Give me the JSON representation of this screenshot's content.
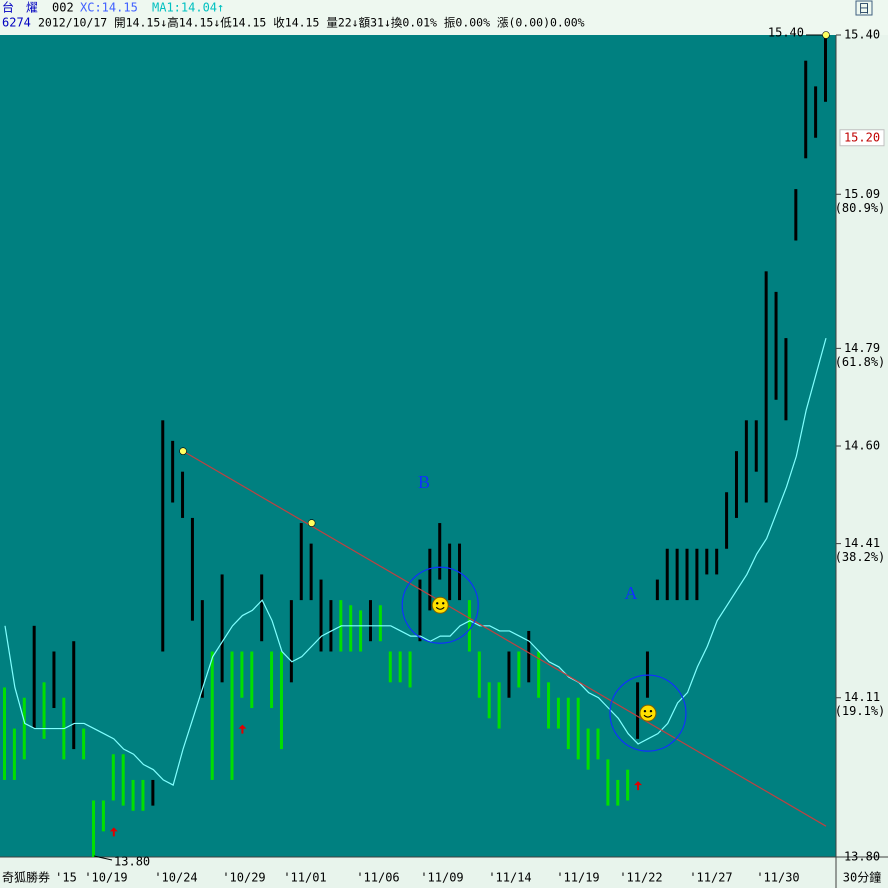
{
  "header": {
    "name": "台　燿",
    "code": "002",
    "xc": "XC:14.15",
    "ma": "MA1:14.04↑",
    "stock_id": "6274",
    "quote": "2012/10/17 開14.15↓高14.15↓低14.15 收14.15 量22↓額31↓換0.01% 振0.00% 漲(0.00)0.00%",
    "icon": "日"
  },
  "footer": {
    "brand": "奇狐勝券",
    "period": "30分鐘"
  },
  "chart_data": {
    "type": "candlestick",
    "high": [
      14.13,
      14.05,
      14.11,
      14.25,
      14.14,
      14.2,
      14.11,
      14.22,
      14.05,
      13.91,
      13.91,
      14.0,
      14.0,
      13.95,
      13.95,
      13.95,
      14.65,
      14.61,
      14.55,
      14.46,
      14.3,
      14.2,
      14.35,
      14.2,
      14.2,
      14.2,
      14.35,
      14.2,
      14.2,
      14.3,
      14.45,
      14.41,
      14.34,
      14.3,
      14.3,
      14.29,
      14.28,
      14.3,
      14.29,
      14.2,
      14.2,
      14.2,
      14.34,
      14.4,
      14.45,
      14.41,
      14.41,
      14.3,
      14.2,
      14.14,
      14.14,
      14.2,
      14.2,
      14.24,
      14.2,
      14.14,
      14.11,
      14.11,
      14.11,
      14.05,
      14.05,
      13.99,
      13.95,
      13.97,
      14.14,
      14.2,
      14.34,
      14.4,
      14.4,
      14.4,
      14.4,
      14.4,
      14.4,
      14.51,
      14.59,
      14.65,
      14.65,
      14.94,
      14.9,
      14.81,
      15.1,
      15.35,
      15.3,
      15.4
    ],
    "low": [
      13.95,
      13.95,
      13.99,
      14.05,
      14.03,
      14.09,
      13.99,
      14.01,
      13.99,
      13.8,
      13.85,
      13.91,
      13.9,
      13.89,
      13.89,
      13.9,
      14.2,
      14.49,
      14.46,
      14.26,
      14.11,
      13.95,
      14.14,
      13.95,
      14.11,
      14.09,
      14.22,
      14.09,
      14.01,
      14.14,
      14.3,
      14.3,
      14.2,
      14.2,
      14.2,
      14.2,
      14.2,
      14.22,
      14.22,
      14.14,
      14.14,
      14.13,
      14.22,
      14.28,
      14.34,
      14.3,
      14.3,
      14.2,
      14.11,
      14.07,
      14.05,
      14.11,
      14.13,
      14.14,
      14.11,
      14.05,
      14.05,
      14.01,
      13.99,
      13.97,
      13.99,
      13.9,
      13.9,
      13.91,
      14.03,
      14.11,
      14.3,
      14.3,
      14.3,
      14.3,
      14.3,
      14.35,
      14.35,
      14.4,
      14.46,
      14.49,
      14.55,
      14.49,
      14.69,
      14.65,
      15.0,
      15.16,
      15.2,
      15.27
    ],
    "rise": [
      false,
      false,
      false,
      true,
      false,
      true,
      false,
      true,
      false,
      false,
      false,
      false,
      false,
      false,
      false,
      true,
      true,
      true,
      true,
      true,
      true,
      false,
      true,
      false,
      false,
      false,
      true,
      false,
      false,
      true,
      true,
      true,
      true,
      true,
      false,
      false,
      false,
      true,
      false,
      false,
      false,
      false,
      true,
      true,
      true,
      true,
      true,
      false,
      false,
      false,
      false,
      true,
      false,
      true,
      false,
      false,
      false,
      false,
      false,
      false,
      false,
      false,
      false,
      false,
      true,
      true,
      true,
      true,
      true,
      true,
      true,
      true,
      true,
      true,
      true,
      true,
      true,
      true,
      true,
      true,
      true,
      true,
      true,
      true
    ],
    "colors": {
      "rise": "#000000",
      "fall": "#00e000"
    },
    "ma": {
      "color": "#80ffff",
      "values": [
        14.25,
        14.13,
        14.06,
        14.05,
        14.05,
        14.05,
        14.05,
        14.06,
        14.06,
        14.05,
        14.04,
        14.03,
        14.01,
        14.0,
        13.98,
        13.97,
        13.95,
        13.94,
        14.01,
        14.07,
        14.13,
        14.19,
        14.22,
        14.25,
        14.27,
        14.28,
        14.3,
        14.26,
        14.2,
        14.18,
        14.19,
        14.21,
        14.23,
        14.24,
        14.25,
        14.25,
        14.25,
        14.25,
        14.25,
        14.25,
        14.24,
        14.23,
        14.23,
        14.22,
        14.23,
        14.23,
        14.25,
        14.26,
        14.25,
        14.25,
        14.24,
        14.24,
        14.23,
        14.22,
        14.2,
        14.18,
        14.17,
        14.15,
        14.14,
        14.12,
        14.11,
        14.09,
        14.07,
        14.04,
        14.02,
        14.03,
        14.04,
        14.06,
        14.1,
        14.12,
        14.17,
        14.21,
        14.26,
        14.29,
        14.32,
        14.35,
        14.39,
        14.42,
        14.47,
        14.52,
        14.58,
        14.67,
        14.74,
        14.81
      ]
    },
    "ylim": [
      13.8,
      15.4
    ],
    "yticks": [
      {
        "value": 13.8,
        "label": "13.80"
      },
      14.11,
      14.41,
      {
        "value": 14.6,
        "label": "14.60"
      },
      14.79,
      15.09,
      {
        "value": 15.4,
        "label": "15.40"
      }
    ],
    "last_price": {
      "value": 15.2,
      "label": "15.20"
    },
    "fib_labels": [
      {
        "value": 15.09,
        "label": "(80.9%)"
      },
      {
        "value": 14.79,
        "label": "(61.8%)"
      },
      {
        "value": 14.41,
        "label": "(38.2%)"
      },
      {
        "value": 14.11,
        "label": "(19.1%)"
      }
    ],
    "xlabels": [
      "'15",
      "'10/19",
      "'10/24",
      "'10/29",
      "'11/01",
      "'11/06",
      "'11/09",
      "'11/14",
      "'11/19",
      "'11/22",
      "'11/27",
      "'11/30"
    ],
    "trendline": {
      "color": "#c04040",
      "start": [
        18,
        14.59
      ],
      "end": [
        83,
        13.86
      ]
    },
    "pivots": [
      {
        "x": 18,
        "value": 14.59
      },
      {
        "x": 31,
        "value": 14.45
      },
      {
        "x": 83,
        "value": 15.4
      }
    ],
    "smileys": [
      {
        "x": 44,
        "value": 14.29
      },
      {
        "x": 65,
        "value": 14.08
      }
    ],
    "arrows": [
      {
        "x": 11,
        "value": 13.85
      },
      {
        "x": 24,
        "value": 14.05
      },
      {
        "x": 64,
        "value": 13.94
      }
    ],
    "annotations": [
      {
        "text": "B"
      },
      {
        "text": "A"
      }
    ],
    "high_label": {
      "x": 83,
      "value": 15.4,
      "label": "15.40"
    },
    "low_label": {
      "x": 9,
      "value": 13.8,
      "label": "13.80"
    }
  }
}
